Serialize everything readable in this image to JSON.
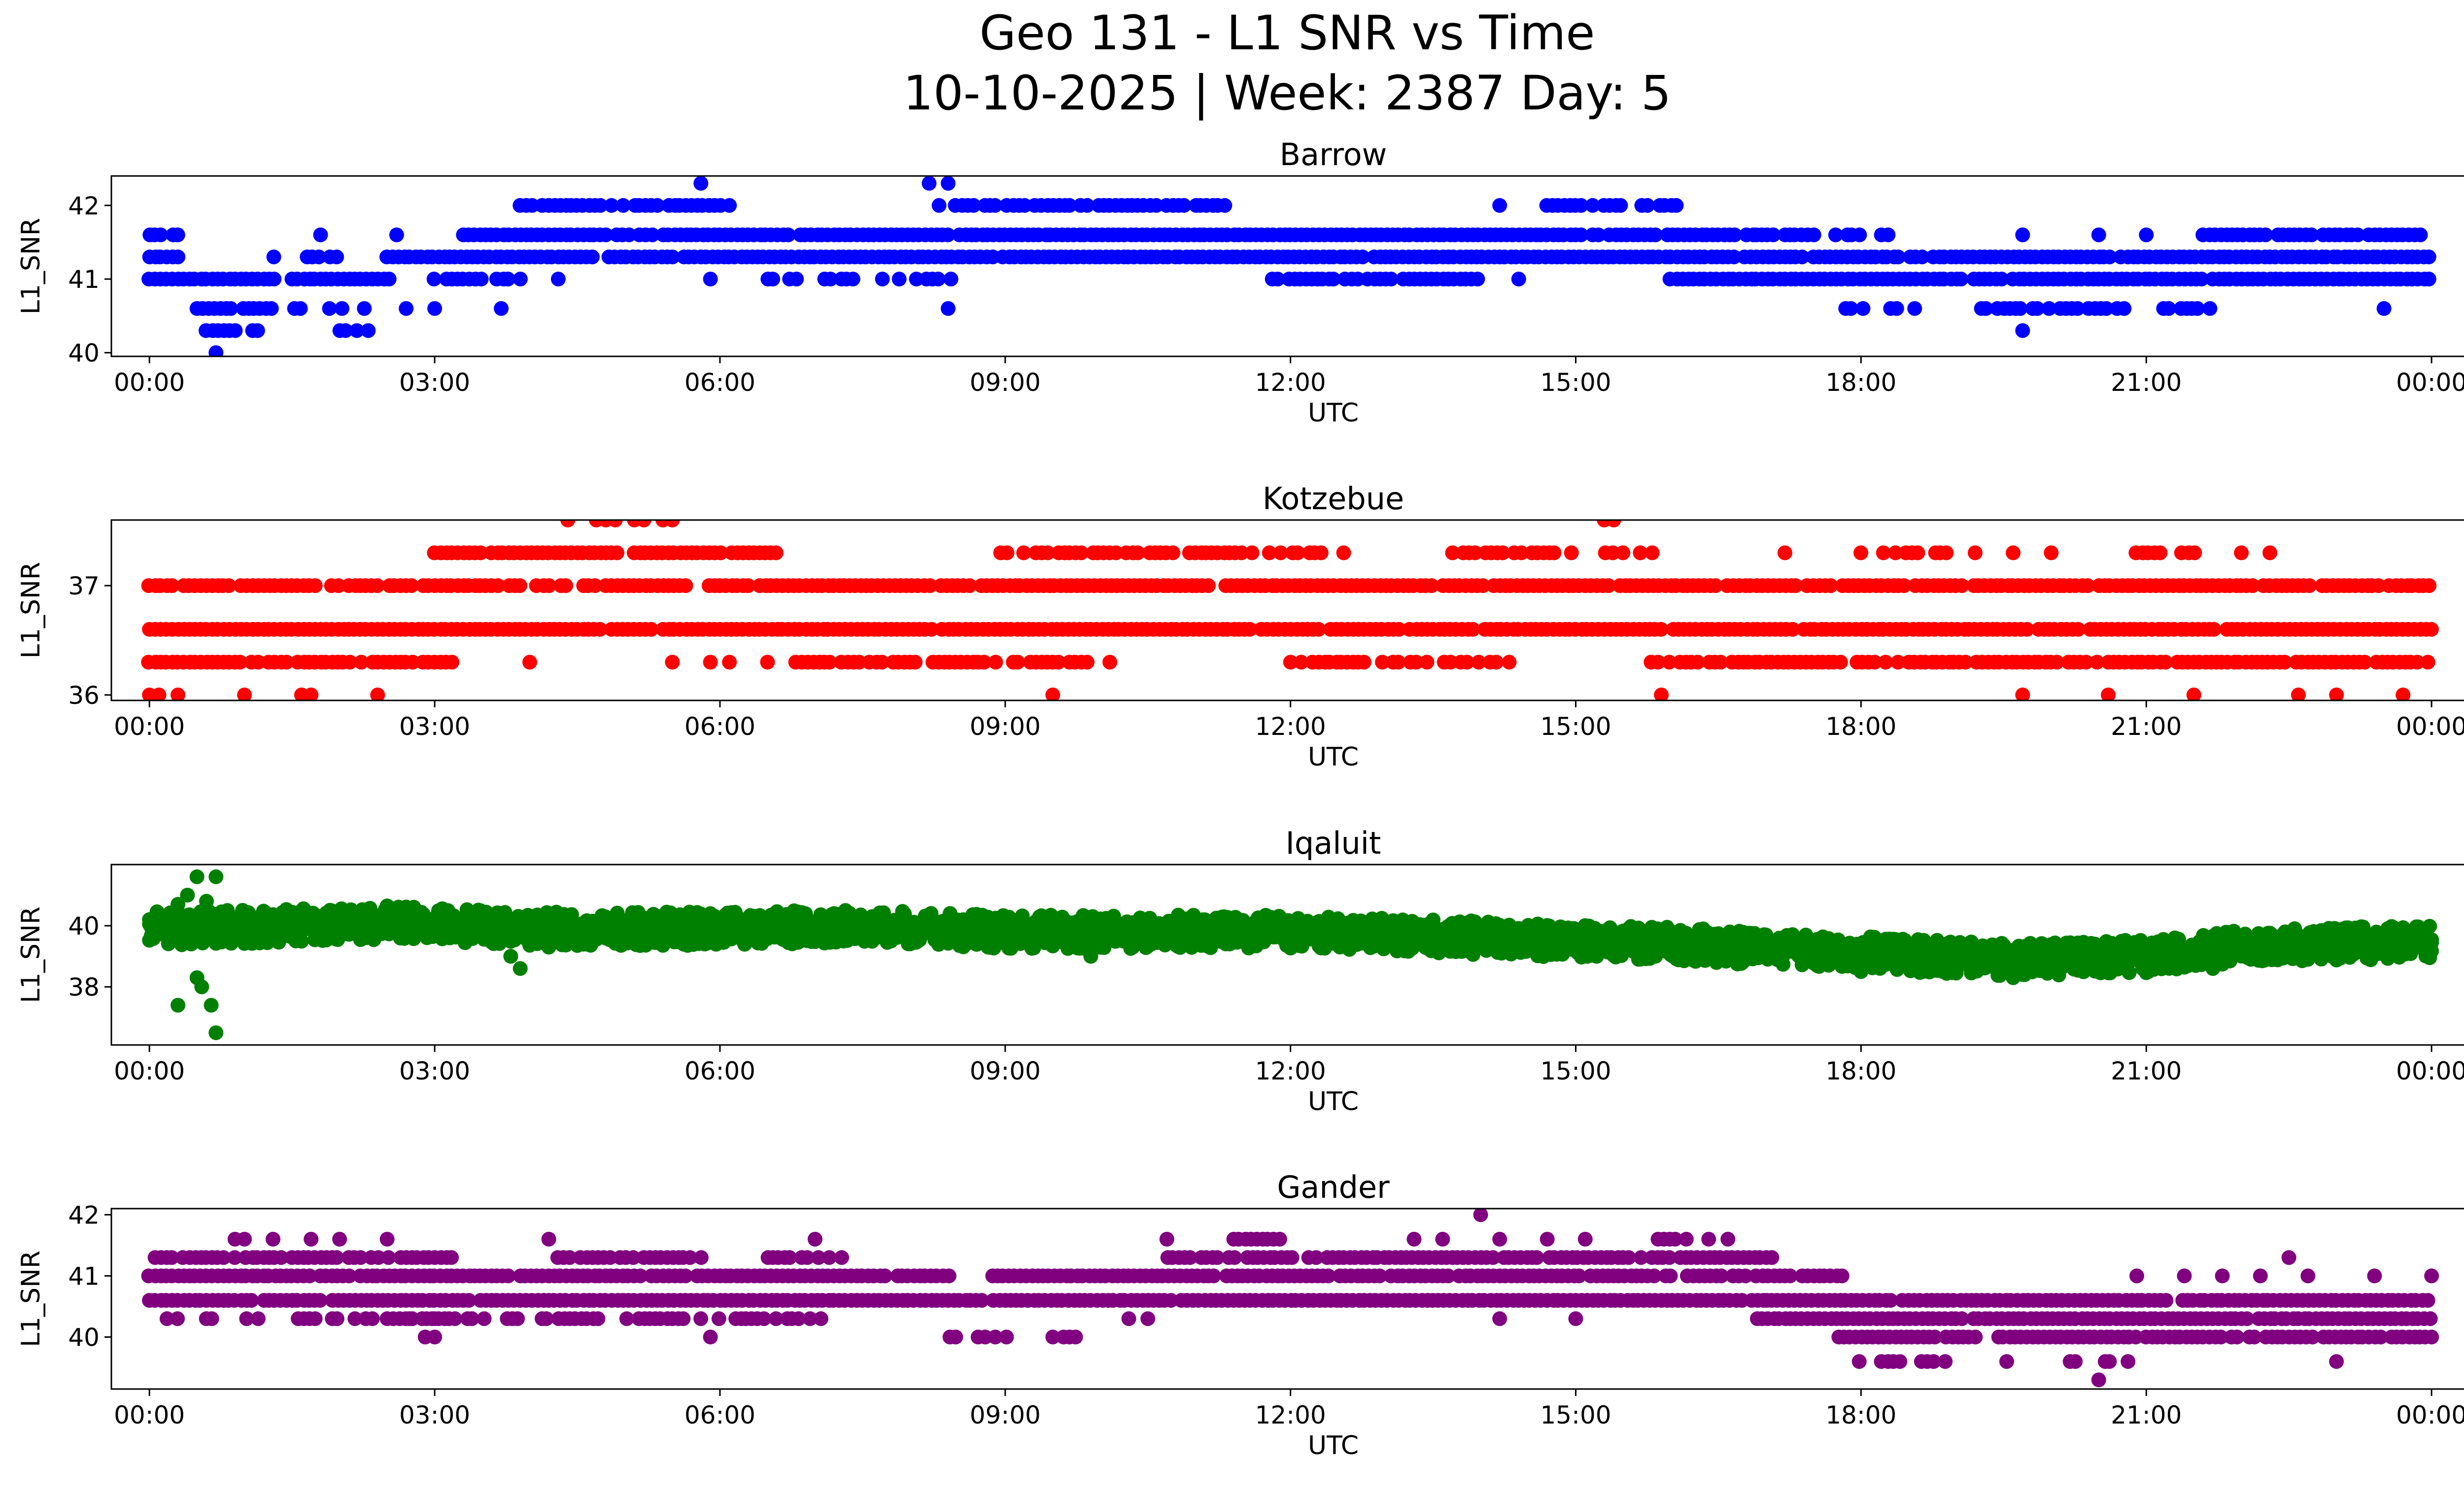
{
  "title_line1": "Geo 131 - L1 SNR vs Time",
  "title_line2": "10-10-2025 | Week: 2387 Day: 5",
  "chart_data": [
    {
      "type": "scatter",
      "title": "Barrow",
      "xlabel": "UTC",
      "ylabel": "L1_SNR",
      "color": "#0000ff",
      "xlim_hours": [
        -0.4,
        25.3
      ],
      "ylim": [
        39.95,
        42.4
      ],
      "xtick_hours": [
        0,
        3,
        6,
        9,
        12,
        15,
        18,
        21,
        24
      ],
      "xtick_labels": [
        "00:00",
        "03:00",
        "06:00",
        "09:00",
        "12:00",
        "15:00",
        "18:00",
        "21:00",
        "00:00"
      ],
      "ytick_values": [
        40,
        41,
        42
      ],
      "ytick_labels": [
        "40",
        "41",
        "42"
      ],
      "snr_levels": [
        40.0,
        40.3,
        40.6,
        41.0,
        41.3,
        41.6,
        42.0,
        42.3
      ],
      "bands": [
        {
          "value": 41.0,
          "from": 0.0,
          "to": 2.6,
          "density": 0.9
        },
        {
          "value": 41.3,
          "from": 0.0,
          "to": 0.3,
          "density": 0.9
        },
        {
          "value": 41.6,
          "from": 0.0,
          "to": 0.4,
          "density": 0.4
        },
        {
          "value": 40.6,
          "from": 0.5,
          "to": 1.6,
          "density": 0.7
        },
        {
          "value": 40.3,
          "from": 0.6,
          "to": 1.3,
          "density": 0.6
        },
        {
          "value": 41.3,
          "from": 1.3,
          "to": 2.0,
          "density": 0.7
        },
        {
          "value": 40.6,
          "from": 1.9,
          "to": 2.5,
          "density": 0.6
        },
        {
          "value": 40.3,
          "from": 2.0,
          "to": 2.4,
          "density": 0.5
        },
        {
          "value": 41.3,
          "from": 2.5,
          "to": 24.0,
          "density": 0.98
        },
        {
          "value": 41.0,
          "from": 3.0,
          "to": 3.9,
          "density": 0.7
        },
        {
          "value": 41.6,
          "from": 3.3,
          "to": 16.9,
          "density": 0.95
        },
        {
          "value": 42.0,
          "from": 3.9,
          "to": 6.1,
          "density": 0.8
        },
        {
          "value": 42.0,
          "from": 8.3,
          "to": 11.4,
          "density": 0.75
        },
        {
          "value": 41.0,
          "from": 6.5,
          "to": 8.5,
          "density": 0.45
        },
        {
          "value": 41.0,
          "from": 11.8,
          "to": 14.0,
          "density": 0.8
        },
        {
          "value": 42.0,
          "from": 14.7,
          "to": 15.5,
          "density": 0.8
        },
        {
          "value": 42.0,
          "from": 15.7,
          "to": 16.1,
          "density": 0.7
        },
        {
          "value": 41.0,
          "from": 16.0,
          "to": 24.0,
          "density": 0.97
        },
        {
          "value": 41.6,
          "from": 16.9,
          "to": 18.3,
          "density": 0.7
        },
        {
          "value": 41.6,
          "from": 21.6,
          "to": 24.0,
          "density": 0.85
        },
        {
          "value": 40.6,
          "from": 17.6,
          "to": 18.6,
          "density": 0.35
        },
        {
          "value": 40.6,
          "from": 19.2,
          "to": 20.6,
          "density": 0.75
        },
        {
          "value": 40.6,
          "from": 20.7,
          "to": 21.7,
          "density": 0.45
        }
      ],
      "points": [
        [
          0.7,
          40.0
        ],
        [
          5.8,
          42.3
        ],
        [
          8.2,
          42.3
        ],
        [
          8.4,
          42.3
        ],
        [
          8.4,
          40.6
        ],
        [
          1.8,
          41.6
        ],
        [
          2.6,
          41.6
        ],
        [
          2.7,
          40.6
        ],
        [
          3.0,
          40.6
        ],
        [
          3.7,
          40.6
        ],
        [
          4.3,
          41.0
        ],
        [
          5.9,
          41.0
        ],
        [
          6.1,
          42.0
        ],
        [
          14.2,
          42.0
        ],
        [
          14.4,
          41.0
        ],
        [
          17.3,
          41.6
        ],
        [
          17.9,
          41.6
        ],
        [
          19.7,
          41.6
        ],
        [
          19.7,
          40.3
        ],
        [
          20.5,
          41.6
        ],
        [
          21.0,
          41.6
        ],
        [
          23.5,
          40.6
        ]
      ]
    },
    {
      "type": "scatter",
      "title": "Kotzebue",
      "xlabel": "UTC",
      "ylabel": "L1_SNR",
      "color": "#ff0000",
      "xlim_hours": [
        -0.4,
        25.3
      ],
      "ylim": [
        35.95,
        37.6
      ],
      "xtick_hours": [
        0,
        3,
        6,
        9,
        12,
        15,
        18,
        21,
        24
      ],
      "xtick_labels": [
        "00:00",
        "03:00",
        "06:00",
        "09:00",
        "12:00",
        "15:00",
        "18:00",
        "21:00",
        "00:00"
      ],
      "ytick_values": [
        36,
        37
      ],
      "ytick_labels": [
        "36",
        "37"
      ],
      "snr_levels": [
        36.0,
        36.3,
        36.6,
        37.0,
        37.3,
        37.6
      ],
      "bands": [
        {
          "value": 36.6,
          "from": 0.0,
          "to": 24.0,
          "density": 0.97
        },
        {
          "value": 36.3,
          "from": 0.0,
          "to": 3.2,
          "density": 0.9
        },
        {
          "value": 37.0,
          "from": 0.0,
          "to": 7.3,
          "density": 0.85
        },
        {
          "value": 37.3,
          "from": 3.0,
          "to": 6.6,
          "density": 0.85
        },
        {
          "value": 36.3,
          "from": 6.8,
          "to": 9.9,
          "density": 0.8
        },
        {
          "value": 37.0,
          "from": 7.3,
          "to": 24.0,
          "density": 0.95
        },
        {
          "value": 37.3,
          "from": 8.9,
          "to": 12.7,
          "density": 0.65
        },
        {
          "value": 36.3,
          "from": 12.0,
          "to": 14.2,
          "density": 0.75
        },
        {
          "value": 37.3,
          "from": 13.7,
          "to": 15.8,
          "density": 0.6
        },
        {
          "value": 36.3,
          "from": 15.8,
          "to": 24.0,
          "density": 0.85
        },
        {
          "value": 37.3,
          "from": 18.0,
          "to": 18.9,
          "density": 0.5
        },
        {
          "value": 37.3,
          "from": 20.9,
          "to": 21.7,
          "density": 0.5
        }
      ],
      "points": [
        [
          0.0,
          36.0
        ],
        [
          0.1,
          36.0
        ],
        [
          0.3,
          36.0
        ],
        [
          1.0,
          36.0
        ],
        [
          1.6,
          36.0
        ],
        [
          1.7,
          36.0
        ],
        [
          2.4,
          36.0
        ],
        [
          9.5,
          36.0
        ],
        [
          15.9,
          36.0
        ],
        [
          19.7,
          36.0
        ],
        [
          20.6,
          36.0
        ],
        [
          21.5,
          36.0
        ],
        [
          22.6,
          36.0
        ],
        [
          23.0,
          36.0
        ],
        [
          23.7,
          36.0
        ],
        [
          4.4,
          37.6
        ],
        [
          4.7,
          37.6
        ],
        [
          4.8,
          37.6
        ],
        [
          4.9,
          37.6
        ],
        [
          5.1,
          37.6
        ],
        [
          5.2,
          37.6
        ],
        [
          5.4,
          37.6
        ],
        [
          5.5,
          37.6
        ],
        [
          15.3,
          37.6
        ],
        [
          15.4,
          37.6
        ],
        [
          4.0,
          36.3
        ],
        [
          5.5,
          36.3
        ],
        [
          5.9,
          36.3
        ],
        [
          6.1,
          36.3
        ],
        [
          6.5,
          36.3
        ],
        [
          10.1,
          36.3
        ],
        [
          14.3,
          36.3
        ],
        [
          17.2,
          37.3
        ],
        [
          19.2,
          37.3
        ],
        [
          19.6,
          37.3
        ],
        [
          20.0,
          37.3
        ],
        [
          22.0,
          37.3
        ],
        [
          22.3,
          37.3
        ]
      ]
    },
    {
      "type": "scatter",
      "title": "Iqaluit",
      "xlabel": "UTC",
      "ylabel": "L1_SNR",
      "color": "#008000",
      "xlim_hours": [
        -0.4,
        25.3
      ],
      "ylim": [
        36.1,
        42.0
      ],
      "xtick_hours": [
        0,
        3,
        6,
        9,
        12,
        15,
        18,
        21,
        24
      ],
      "xtick_labels": [
        "00:00",
        "03:00",
        "06:00",
        "09:00",
        "12:00",
        "15:00",
        "18:00",
        "21:00",
        "00:00"
      ],
      "ytick_values": [
        38,
        40
      ],
      "ytick_labels": [
        "38",
        "40"
      ],
      "trend": [
        [
          0.0,
          39.9
        ],
        [
          1.5,
          40.0
        ],
        [
          2.5,
          40.1
        ],
        [
          4.0,
          39.9
        ],
        [
          6.0,
          39.9
        ],
        [
          7.5,
          40.0
        ],
        [
          9.0,
          39.8
        ],
        [
          10.5,
          39.8
        ],
        [
          12.0,
          39.8
        ],
        [
          14.0,
          39.6
        ],
        [
          16.0,
          39.4
        ],
        [
          18.0,
          39.1
        ],
        [
          19.5,
          38.9
        ],
        [
          21.0,
          39.0
        ],
        [
          22.0,
          39.3
        ],
        [
          24.0,
          39.5
        ]
      ],
      "spread": 0.55,
      "points": [
        [
          0.3,
          37.4
        ],
        [
          0.4,
          41.0
        ],
        [
          0.5,
          41.6
        ],
        [
          0.5,
          38.3
        ],
        [
          0.55,
          38.0
        ],
        [
          0.6,
          40.8
        ],
        [
          0.65,
          37.4
        ],
        [
          0.7,
          41.6
        ],
        [
          0.7,
          36.5
        ],
        [
          0.3,
          40.7
        ],
        [
          3.9,
          38.6
        ],
        [
          3.8,
          39.0
        ],
        [
          4.2,
          39.3
        ],
        [
          18.0,
          38.5
        ],
        [
          19.6,
          38.3
        ],
        [
          21.7,
          38.6
        ],
        [
          9.9,
          39.0
        ]
      ]
    },
    {
      "type": "scatter",
      "title": "Gander",
      "xlabel": "UTC",
      "ylabel": "L1_SNR",
      "color": "#800080",
      "xlim_hours": [
        -0.4,
        25.3
      ],
      "ylim": [
        39.15,
        42.1
      ],
      "xtick_hours": [
        0,
        3,
        6,
        9,
        12,
        15,
        18,
        21,
        24
      ],
      "xtick_labels": [
        "00:00",
        "03:00",
        "06:00",
        "09:00",
        "12:00",
        "15:00",
        "18:00",
        "21:00",
        "00:00"
      ],
      "ytick_values": [
        40,
        41,
        42
      ],
      "ytick_labels": [
        "40",
        "41",
        "42"
      ],
      "snr_levels": [
        39.3,
        39.6,
        40.0,
        40.3,
        40.6,
        41.0,
        41.3,
        41.6,
        42.0
      ],
      "bands": [
        {
          "value": 41.0,
          "from": 0.0,
          "to": 8.4,
          "density": 0.95
        },
        {
          "value": 40.6,
          "from": 0.0,
          "to": 17.0,
          "density": 0.98
        },
        {
          "value": 41.3,
          "from": 0.0,
          "to": 3.2,
          "density": 0.8
        },
        {
          "value": 40.3,
          "from": 0.0,
          "to": 3.0,
          "density": 0.45
        },
        {
          "value": 40.3,
          "from": 2.5,
          "to": 7.3,
          "density": 0.7
        },
        {
          "value": 41.3,
          "from": 4.3,
          "to": 5.8,
          "density": 0.75
        },
        {
          "value": 41.3,
          "from": 6.5,
          "to": 7.3,
          "density": 0.65
        },
        {
          "value": 41.0,
          "from": 8.8,
          "to": 17.8,
          "density": 0.92
        },
        {
          "value": 41.3,
          "from": 10.7,
          "to": 17.1,
          "density": 0.85
        },
        {
          "value": 40.0,
          "from": 8.3,
          "to": 9.8,
          "density": 0.55
        },
        {
          "value": 40.6,
          "from": 17.0,
          "to": 24.0,
          "density": 0.97
        },
        {
          "value": 40.3,
          "from": 16.9,
          "to": 24.0,
          "density": 0.97
        },
        {
          "value": 40.0,
          "from": 17.7,
          "to": 24.0,
          "density": 0.9
        },
        {
          "value": 39.6,
          "from": 17.8,
          "to": 20.8,
          "density": 0.35
        },
        {
          "value": 41.6,
          "from": 11.4,
          "to": 11.9,
          "density": 0.8
        },
        {
          "value": 41.6,
          "from": 15.8,
          "to": 16.4,
          "density": 0.8
        }
      ],
      "points": [
        [
          14.0,
          42.0
        ],
        [
          20.5,
          39.3
        ],
        [
          0.9,
          41.6
        ],
        [
          1.0,
          41.6
        ],
        [
          1.3,
          41.6
        ],
        [
          1.7,
          41.6
        ],
        [
          2.0,
          41.6
        ],
        [
          2.5,
          41.6
        ],
        [
          4.2,
          41.6
        ],
        [
          7.0,
          41.6
        ],
        [
          10.7,
          41.6
        ],
        [
          13.3,
          41.6
        ],
        [
          13.6,
          41.6
        ],
        [
          14.2,
          41.6
        ],
        [
          14.7,
          41.6
        ],
        [
          15.1,
          41.6
        ],
        [
          16.6,
          41.6
        ],
        [
          2.9,
          40.0
        ],
        [
          3.0,
          40.0
        ],
        [
          5.9,
          40.0
        ],
        [
          10.3,
          40.3
        ],
        [
          10.5,
          40.3
        ],
        [
          14.2,
          40.3
        ],
        [
          15.0,
          40.3
        ],
        [
          23.0,
          39.6
        ],
        [
          22.5,
          41.3
        ],
        [
          20.9,
          41.0
        ],
        [
          21.4,
          41.0
        ],
        [
          21.8,
          41.0
        ],
        [
          22.2,
          41.0
        ],
        [
          22.7,
          41.0
        ],
        [
          23.4,
          41.0
        ],
        [
          24.0,
          41.0
        ]
      ]
    }
  ]
}
